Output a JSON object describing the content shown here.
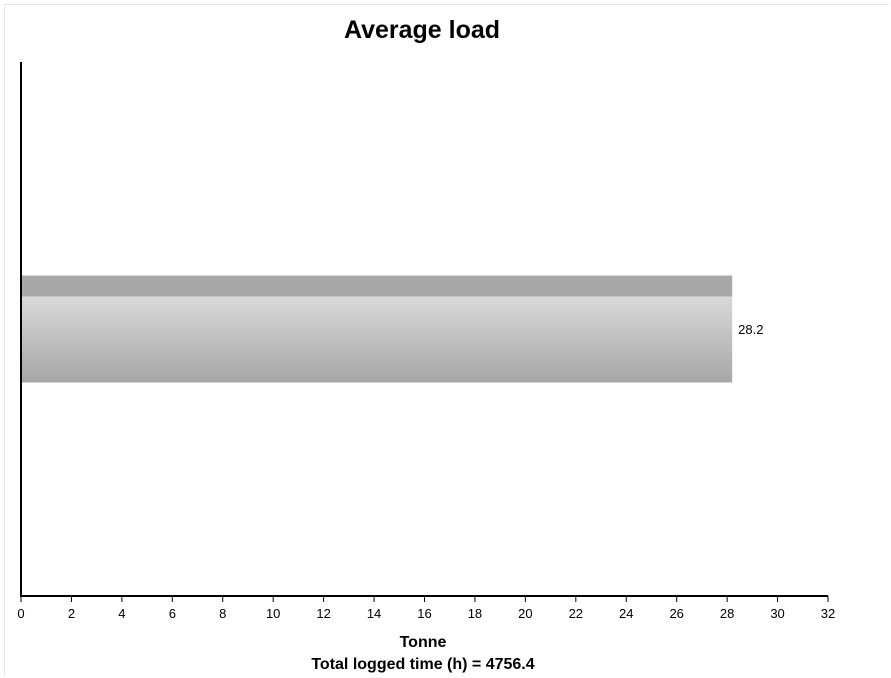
{
  "chart_data": {
    "type": "bar",
    "orientation": "horizontal",
    "title": "Average load",
    "xlabel": "Tonne",
    "footer": "Total logged time (h) = 4756.4",
    "xlim": [
      0,
      32
    ],
    "x_ticks": [
      0,
      2,
      4,
      6,
      8,
      10,
      12,
      14,
      16,
      18,
      20,
      22,
      24,
      26,
      28,
      30,
      32
    ],
    "categories": [
      ""
    ],
    "values": [
      28.2
    ],
    "value_labels": [
      "28.2"
    ],
    "grid": false,
    "legend": "none",
    "colors": {
      "bar_top_band": "#a8a8a8",
      "bar_light": "#e6e6e6",
      "bar_dark": "#a6a6a6",
      "axis": "#000000"
    }
  }
}
